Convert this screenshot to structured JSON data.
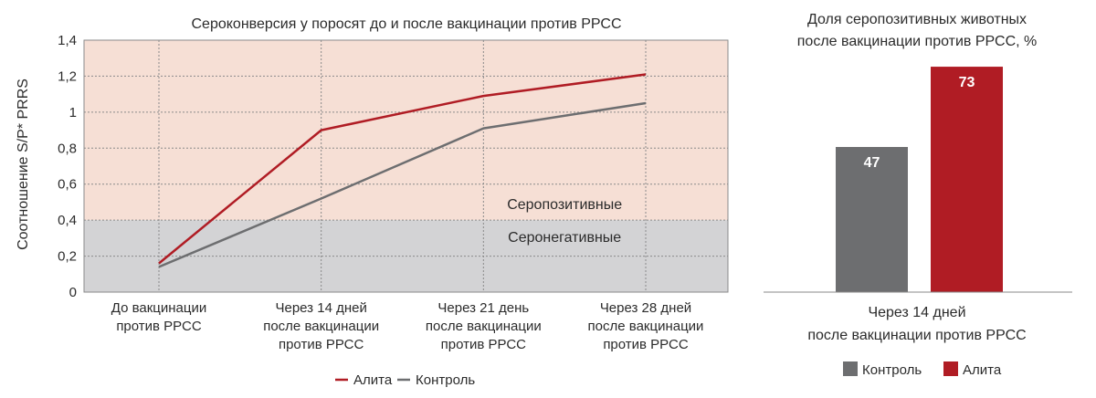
{
  "chart_data": [
    {
      "type": "line",
      "title": "Сероконверсия у поросят до и после вакцинации против РРСС",
      "ylabel": "Соотношение S/P* PRRS",
      "xlabel": "",
      "ylim": [
        0,
        1.4
      ],
      "yticks": [
        "0",
        "0,2",
        "0,4",
        "0,6",
        "0,8",
        "1",
        "1,2",
        "1,4"
      ],
      "categories": [
        [
          "До вакцинации",
          "против РРСС"
        ],
        [
          "Через 14 дней",
          "после вакцинации",
          "против РРСС"
        ],
        [
          "Через 21 день",
          "после вакцинации",
          "против РРСС"
        ],
        [
          "Через 28 дней",
          "после вакцинации",
          "против РРСС"
        ]
      ],
      "series": [
        {
          "name": "Алита",
          "color": "#b01c24",
          "values": [
            0.16,
            0.9,
            1.09,
            1.21
          ]
        },
        {
          "name": "Контроль",
          "color": "#6d6e70",
          "values": [
            0.14,
            0.52,
            0.91,
            1.05
          ]
        }
      ],
      "bands": [
        {
          "label": "Серопозитивные",
          "from": 0.4,
          "to": 1.4,
          "color": "#f6dfd5"
        },
        {
          "label": "Серонегативные",
          "from": 0,
          "to": 0.4,
          "color": "#d3d3d5"
        }
      ],
      "grid": true,
      "legend_position": "bottom"
    },
    {
      "type": "bar",
      "title_lines": [
        "Доля серопозитивных животных",
        "после вакцинации против РРСС, %"
      ],
      "category_lines": [
        "Через 14 дней",
        "после вакцинации против РРСС"
      ],
      "ylim": [
        0,
        80
      ],
      "series": [
        {
          "name": "Контроль",
          "color": "#6d6e70",
          "value": 47,
          "label": "47"
        },
        {
          "name": "Алита",
          "color": "#b01c24",
          "value": 73,
          "label": "73"
        }
      ],
      "legend_position": "bottom"
    }
  ]
}
